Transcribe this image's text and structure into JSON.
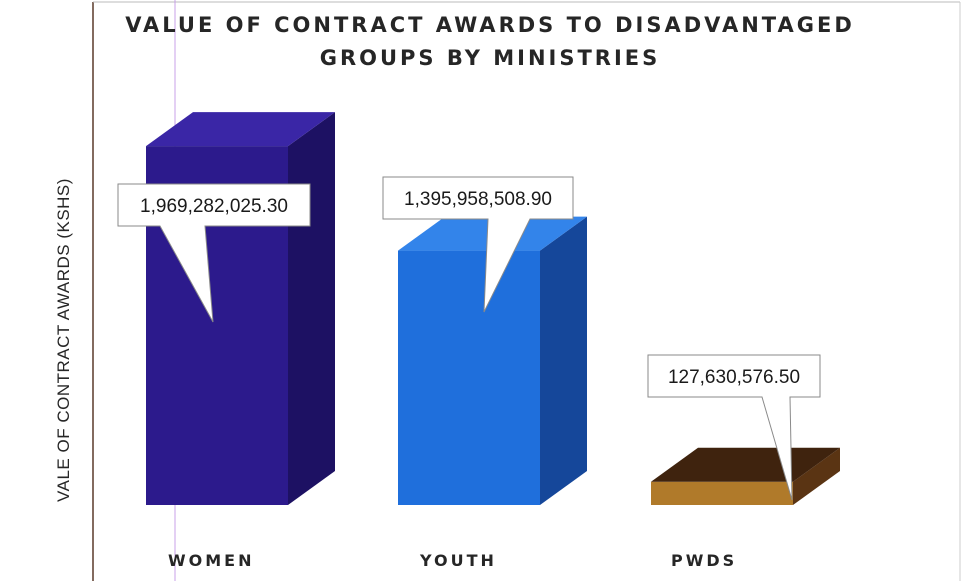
{
  "chart_data": {
    "type": "bar",
    "title": "VALUE OF CONTRACT AWARDS TO DISADVANTAGED GROUPS BY MINISTRIES",
    "title_lines": [
      "VALUE OF CONTRACT AWARDS TO DISADVANTAGED",
      "GROUPS BY MINISTRIES"
    ],
    "ylabel": "VALE OF CONTRACT AWARDS (KSHS)",
    "xlabel": "",
    "categories": [
      "WOMEN",
      "YOUTH",
      "PWDS"
    ],
    "values": [
      1969282025.3,
      1395958508.9,
      127630576.5
    ],
    "value_labels": [
      "1,969,282,025.30",
      "1,395,958,508.90",
      "127,630,576.50"
    ],
    "ylim": [
      0,
      2140000000
    ],
    "grid": false,
    "legend": "none",
    "style": "3d-column",
    "colors": [
      {
        "front": "#2c1a8c",
        "side": "#1d1163",
        "top": "#3a26a6"
      },
      {
        "front": "#1f6fdc",
        "side": "#15479a",
        "top": "#3384ea"
      },
      {
        "front": "#b07a2a",
        "side": "#5a3413",
        "top": "#3f230e"
      }
    ]
  }
}
